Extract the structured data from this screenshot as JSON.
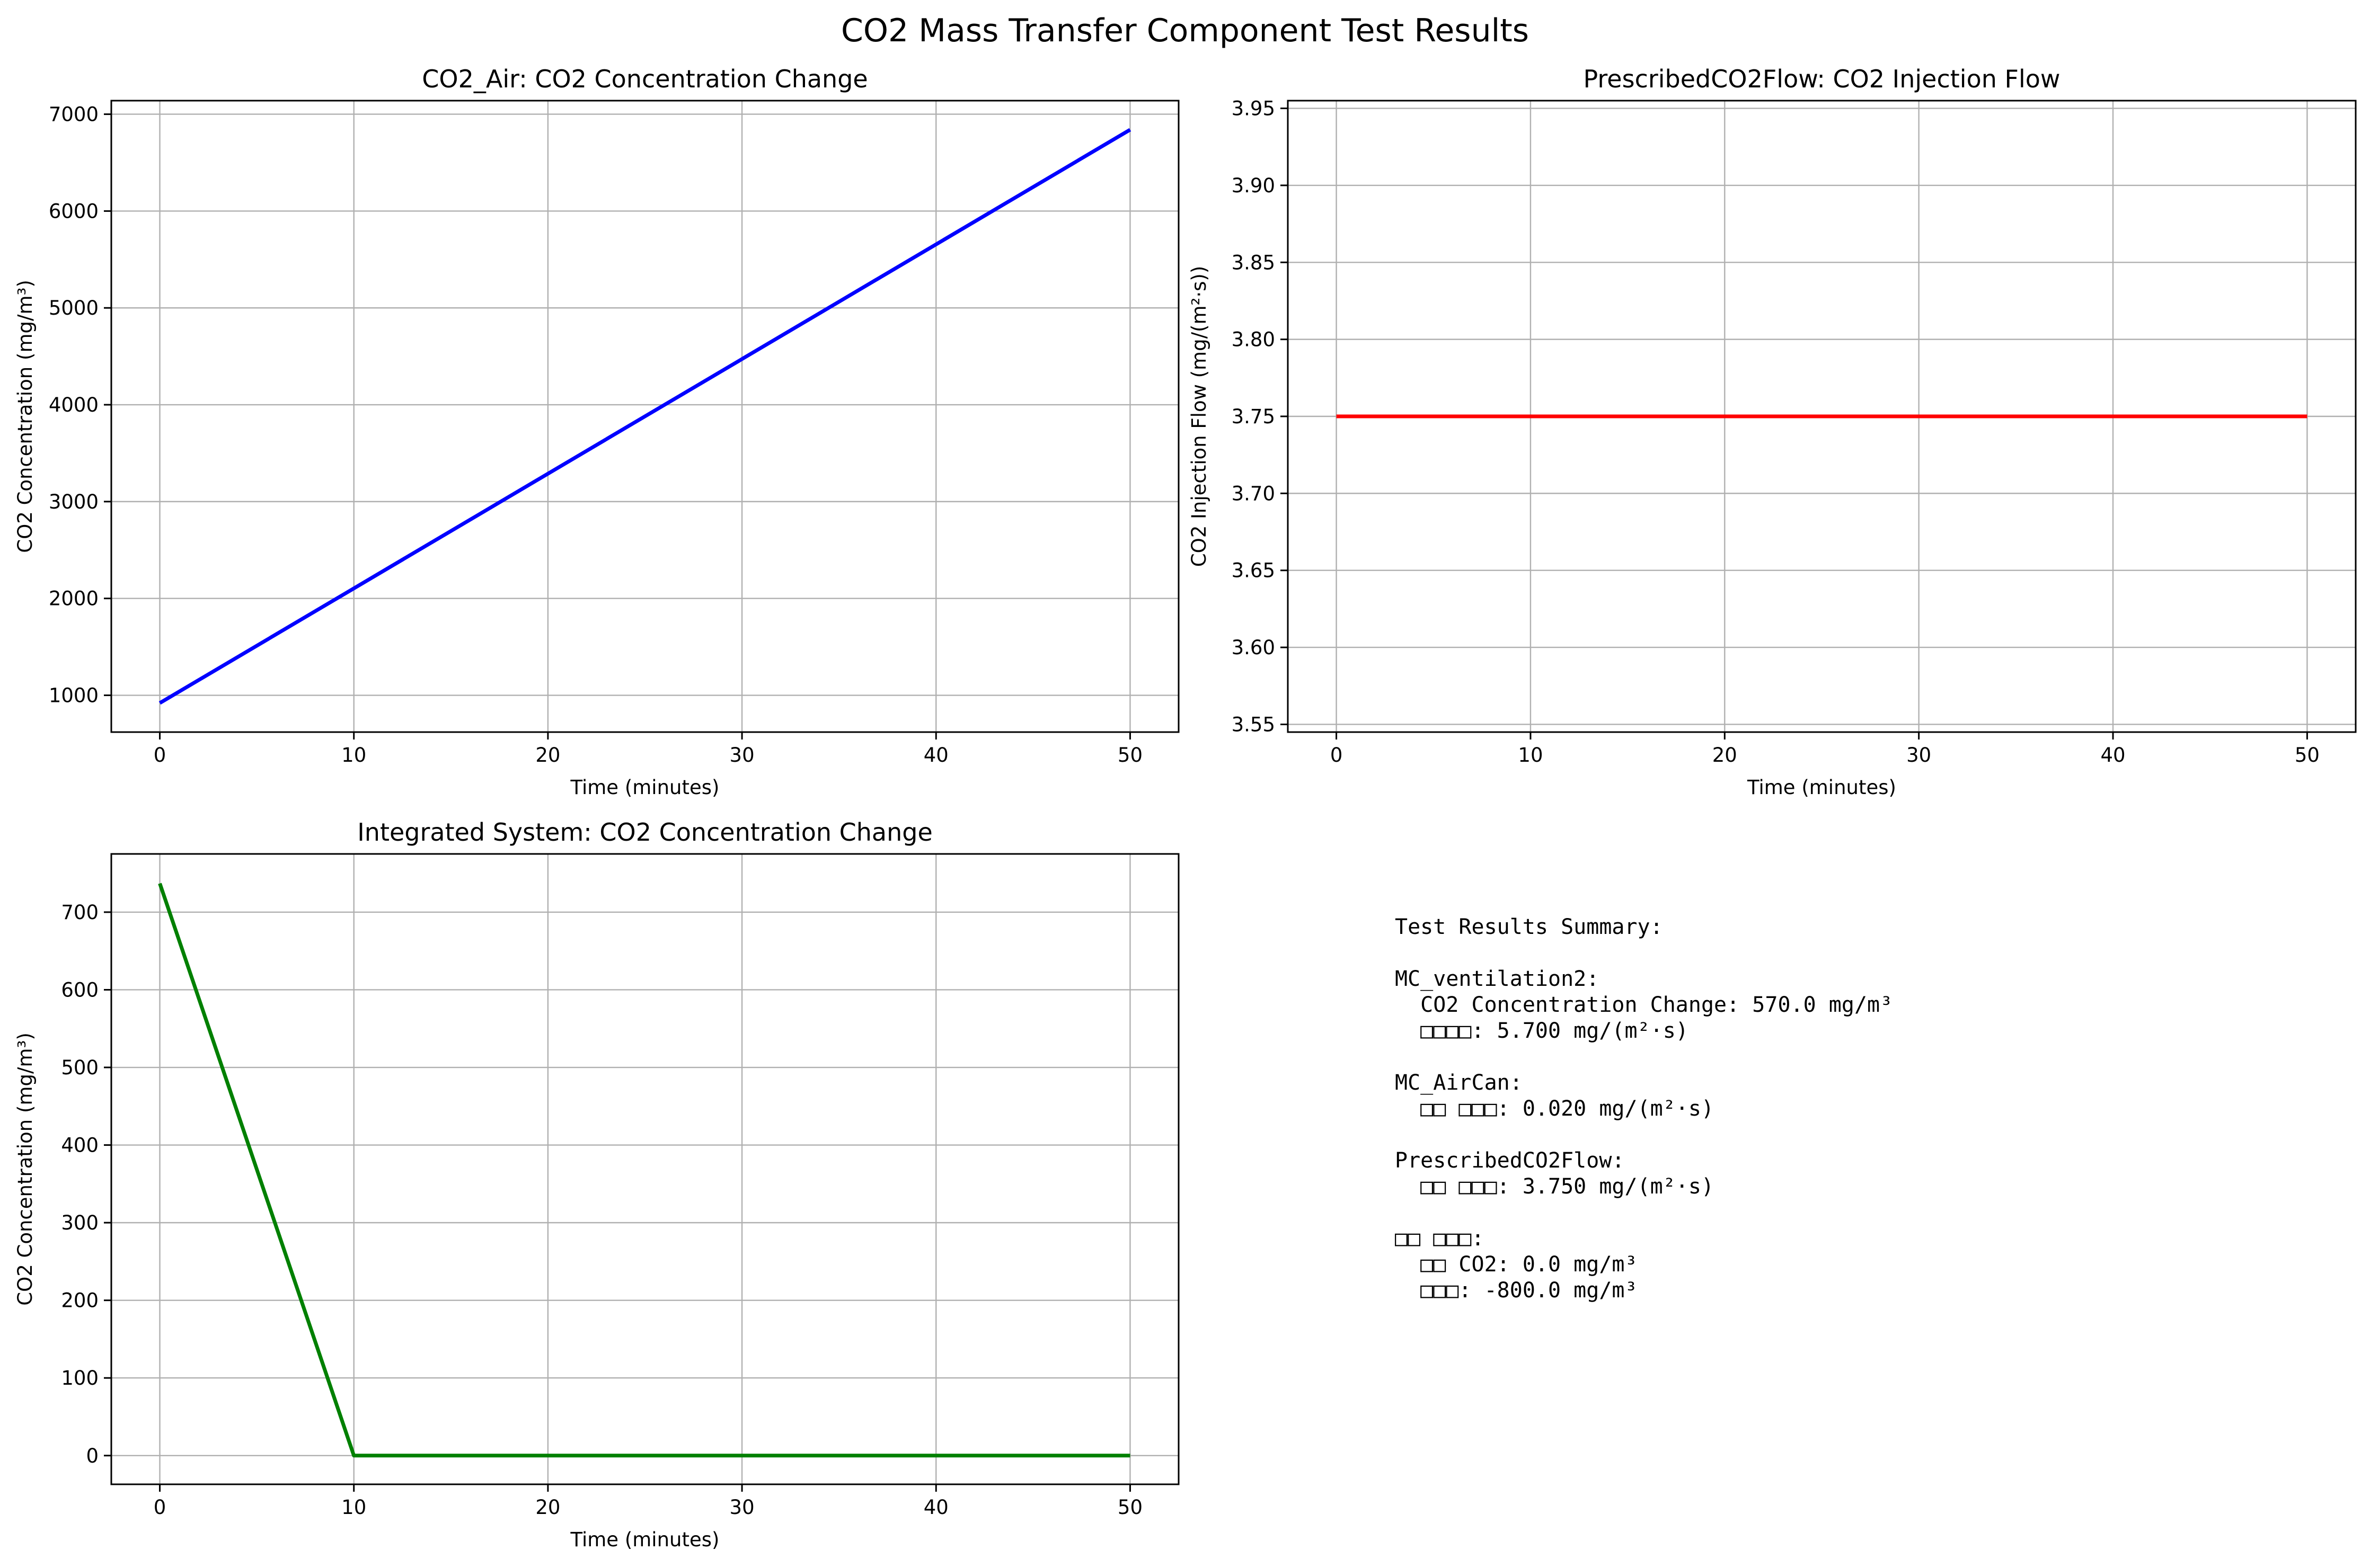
{
  "figure": {
    "title": "CO2 Mass Transfer Component Test Results"
  },
  "chart_data": [
    {
      "id": "co2-air",
      "type": "line",
      "title": "CO2_Air: CO2 Concentration Change",
      "xlabel": "Time (minutes)",
      "ylabel": "CO2 Concentration (mg/m³)",
      "xlim": [
        -2.5,
        52.5
      ],
      "ylim": [
        620,
        7140
      ],
      "xticks": [
        0,
        10,
        20,
        30,
        40,
        50
      ],
      "yticks": [
        1000,
        2000,
        3000,
        4000,
        5000,
        6000,
        7000
      ],
      "ytick_format": "int",
      "grid": true,
      "series": [
        {
          "color": "#0000ff",
          "x": [
            0,
            50
          ],
          "y": [
            920,
            6840
          ]
        }
      ]
    },
    {
      "id": "prescribed-flow",
      "type": "line",
      "title": "PrescribedCO2Flow: CO2 Injection Flow",
      "xlabel": "Time (minutes)",
      "ylabel": "CO2 Injection Flow (mg/(m²·s))",
      "xlim": [
        -2.5,
        52.5
      ],
      "ylim": [
        3.545,
        3.955
      ],
      "xticks": [
        0,
        10,
        20,
        30,
        40,
        50
      ],
      "yticks": [
        3.55,
        3.6,
        3.65,
        3.7,
        3.75,
        3.8,
        3.85,
        3.9,
        3.95
      ],
      "ytick_format": "2dp",
      "grid": true,
      "series": [
        {
          "color": "#ff0000",
          "x": [
            0,
            50
          ],
          "y": [
            3.75,
            3.75
          ]
        }
      ]
    },
    {
      "id": "integrated-system",
      "type": "line",
      "title": "Integrated System: CO2 Concentration Change",
      "xlabel": "Time (minutes)",
      "ylabel": "CO2 Concentration (mg/m³)",
      "xlim": [
        -2.5,
        52.5
      ],
      "ylim": [
        -37,
        775
      ],
      "xticks": [
        0,
        10,
        20,
        30,
        40,
        50
      ],
      "yticks": [
        0,
        100,
        200,
        300,
        400,
        500,
        600,
        700
      ],
      "ytick_format": "int",
      "grid": true,
      "series": [
        {
          "color": "#008000",
          "x": [
            0,
            10,
            50
          ],
          "y": [
            737,
            0,
            0
          ]
        }
      ]
    }
  ],
  "summary": {
    "lines": [
      "Test Results Summary:",
      "",
      "MC_ventilation2:",
      "  CO2 Concentration Change: 570.0 mg/m³",
      "  □□□□: 5.700 mg/(m²·s)",
      "",
      "MC_AirCan:",
      "  □□ □□□: 0.020 mg/(m²·s)",
      "",
      "PrescribedCO2Flow:",
      "  □□ □□□: 3.750 mg/(m²·s)",
      "",
      "□□ □□□:",
      "  □□ CO2: 0.0 mg/m³",
      "  □□□: -800.0 mg/m³"
    ]
  }
}
